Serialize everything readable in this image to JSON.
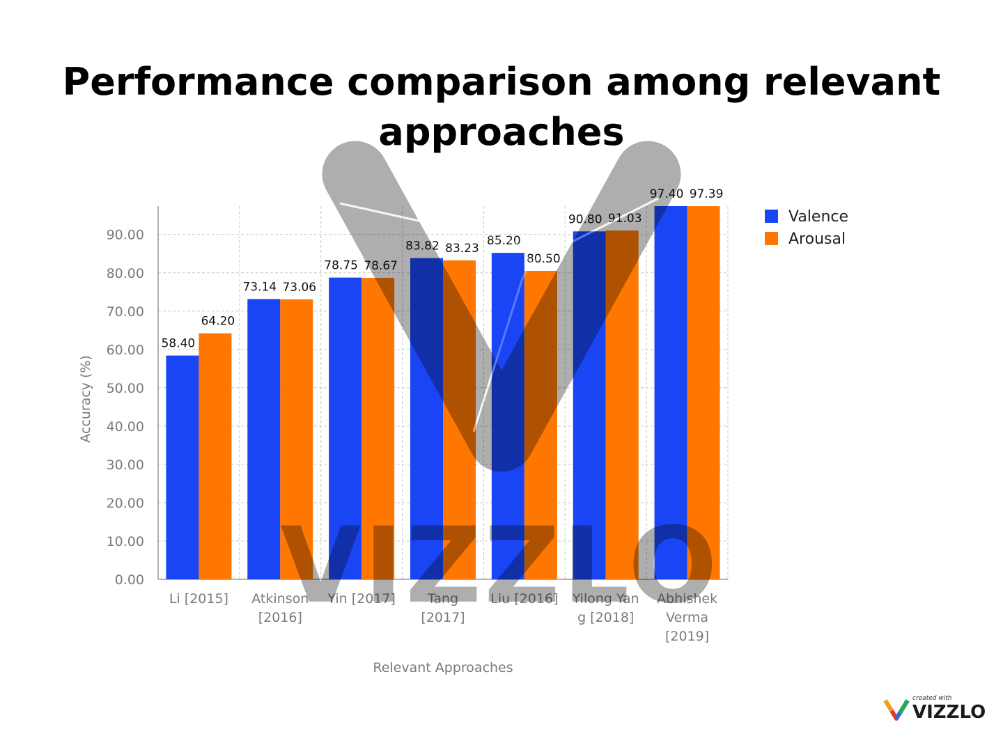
{
  "chart_data": {
    "type": "bar",
    "title": "Performance comparison among relevant approaches",
    "xlabel": "Relevant Approaches",
    "ylabel": "Accuracy (%)",
    "ylim": [
      0,
      97.4
    ],
    "yticks": [
      "0.00",
      "10.00",
      "20.00",
      "30.00",
      "40.00",
      "50.00",
      "60.00",
      "70.00",
      "80.00",
      "90.00"
    ],
    "grid": true,
    "legend_position": "right",
    "categories": [
      [
        "Li [2015]"
      ],
      [
        "Atkinson",
        "[2016]"
      ],
      [
        "Yin [2017]"
      ],
      [
        "Tang",
        "[2017]"
      ],
      [
        "Liu [2016]"
      ],
      [
        "Yilong Yan",
        "g [2018]"
      ],
      [
        "Abhishek",
        "Verma",
        "[2019]"
      ]
    ],
    "series": [
      {
        "name": "Valence",
        "color": "#1a45f5",
        "values": [
          58.4,
          73.14,
          78.75,
          83.82,
          85.2,
          90.8,
          97.4
        ],
        "labels": [
          "58.40",
          "73.14",
          "78.75",
          "83.82",
          "85.20",
          "90.80",
          "97.40"
        ]
      },
      {
        "name": "Arousal",
        "color": "#ff7700",
        "values": [
          64.2,
          73.06,
          78.67,
          83.23,
          80.5,
          91.03,
          97.39
        ],
        "labels": [
          "64.20",
          "73.06",
          "78.67",
          "83.23",
          "80.50",
          "91.03",
          "97.39"
        ]
      }
    ]
  },
  "watermark": {
    "text": "VIZZLO"
  },
  "branding": {
    "created_with": "created with",
    "name": "VIZZLO"
  }
}
